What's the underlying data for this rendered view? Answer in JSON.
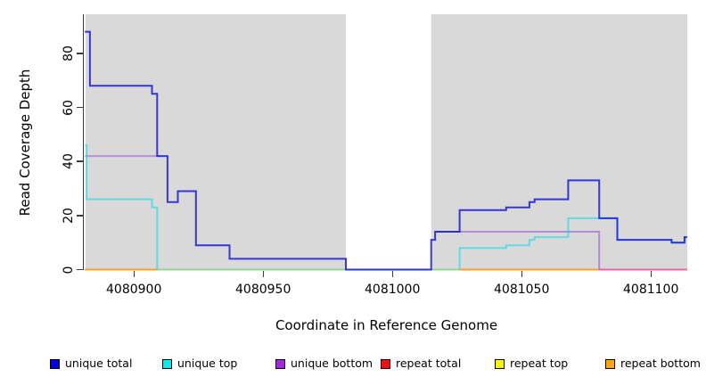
{
  "axes": {
    "y": {
      "label": "Read Coverage Depth",
      "ticks": [
        0,
        20,
        40,
        60,
        80
      ]
    },
    "x": {
      "label": "Coordinate in Reference Genome",
      "ticks": [
        4080900,
        4080950,
        4081000,
        4081050,
        4081100
      ]
    }
  },
  "legend": {
    "items": [
      {
        "label": "unique total",
        "color": "#0000ee"
      },
      {
        "label": "unique top",
        "color": "#00eeee"
      },
      {
        "label": "unique bottom",
        "color": "#a02ad6"
      },
      {
        "label": "repeat total",
        "color": "#ee1111"
      },
      {
        "label": "repeat top",
        "color": "#f8f800"
      },
      {
        "label": "repeat bottom",
        "color": "#ffa510"
      }
    ]
  },
  "chart_data": {
    "type": "line",
    "subtype": "step-coverage",
    "title": "",
    "xlabel": "Coordinate in Reference Genome",
    "ylabel": "Read Coverage Depth",
    "xlim": [
      4080881,
      4081114
    ],
    "ylim": [
      0,
      92
    ],
    "grid": false,
    "plot_background": "#d9d9d9",
    "masked_region": {
      "x_start": 4080982,
      "x_end": 4081015,
      "color": "#ffffff"
    },
    "series": [
      {
        "name": "unique total",
        "points": [
          [
            4080881,
            88
          ],
          [
            4080883,
            68
          ],
          [
            4080907,
            65
          ],
          [
            4080909,
            42
          ],
          [
            4080913,
            25
          ],
          [
            4080917,
            29
          ],
          [
            4080924,
            9
          ],
          [
            4080937,
            4
          ],
          [
            4080982,
            0
          ],
          [
            4081015,
            11
          ],
          [
            4081016.5,
            14
          ],
          [
            4081026,
            22
          ],
          [
            4081044,
            23
          ],
          [
            4081053,
            25
          ],
          [
            4081055,
            26
          ],
          [
            4081068,
            33
          ],
          [
            4081080,
            19
          ],
          [
            4081087,
            11
          ],
          [
            4081108,
            10
          ],
          [
            4081113,
            12
          ],
          [
            4081114,
            12
          ]
        ]
      },
      {
        "name": "unique top",
        "points": [
          [
            4080881,
            46
          ],
          [
            4080881.7,
            26
          ],
          [
            4080907,
            23
          ],
          [
            4080909,
            0
          ],
          [
            4081026,
            8
          ],
          [
            4081044,
            9
          ],
          [
            4081053,
            11
          ],
          [
            4081055,
            12
          ],
          [
            4081068,
            19
          ],
          [
            4081087,
            11
          ],
          [
            4081108,
            10
          ],
          [
            4081113,
            12
          ],
          [
            4081114,
            12
          ]
        ]
      },
      {
        "name": "unique bottom",
        "points": [
          [
            4080881,
            42
          ],
          [
            4080910,
            25
          ],
          [
            4080917,
            29
          ],
          [
            4080924,
            9
          ],
          [
            4080937,
            4
          ],
          [
            4080982,
            0
          ],
          [
            4081015,
            11
          ],
          [
            4081016.5,
            14
          ],
          [
            4081080,
            0
          ],
          [
            4081114,
            0
          ]
        ]
      },
      {
        "name": "repeat total",
        "points": [
          [
            4080881,
            0
          ],
          [
            4081114,
            0
          ]
        ]
      },
      {
        "name": "repeat top",
        "points": [
          [
            4080881,
            0
          ],
          [
            4081114,
            0
          ]
        ]
      },
      {
        "name": "repeat bottom",
        "points": [
          [
            4080881,
            0
          ],
          [
            4081114,
            0
          ]
        ]
      }
    ],
    "render_lines": [
      {
        "name": "zero-line-repeat-bottom-left",
        "color": "#ff9d2e",
        "points": [
          [
            4080881,
            0
          ],
          [
            4080909,
            0
          ]
        ]
      },
      {
        "name": "zero-line-blend-green",
        "color": "#95d595",
        "points": [
          [
            4080909,
            0
          ],
          [
            4081026,
            0
          ]
        ]
      },
      {
        "name": "zero-line-repeat-bottom-mid",
        "color": "#ff9d2e",
        "points": [
          [
            4081026,
            0
          ],
          [
            4081080,
            0
          ]
        ]
      },
      {
        "name": "zero-line-blend-pink",
        "color": "#ea679d",
        "points": [
          [
            4081080,
            0
          ],
          [
            4081114,
            0
          ]
        ]
      },
      {
        "name": "unique-bottom-left",
        "color": "rgba(140,60,210,0.45)",
        "points": [
          [
            4080881,
            42
          ],
          [
            4080910,
            42
          ]
        ]
      },
      {
        "name": "unique-bottom-right",
        "color": "rgba(140,60,210,0.5)",
        "points": [
          [
            4081016.5,
            14
          ],
          [
            4081080,
            14
          ],
          [
            4081080,
            0
          ]
        ]
      },
      {
        "name": "unique-top-left",
        "color": "rgba(0,220,230,0.55)",
        "points": [
          [
            4080881,
            46
          ],
          [
            4080881.7,
            26
          ],
          [
            4080907,
            23
          ],
          [
            4080909,
            0
          ]
        ]
      },
      {
        "name": "unique-top-right",
        "color": "rgba(0,220,230,0.55)",
        "points": [
          [
            4081026,
            0
          ],
          [
            4081026,
            8
          ],
          [
            4081044,
            9
          ],
          [
            4081053,
            11
          ],
          [
            4081055,
            12
          ],
          [
            4081068,
            19
          ],
          [
            4081087,
            11
          ],
          [
            4081108,
            10
          ],
          [
            4081113,
            12
          ],
          [
            4081114,
            12
          ]
        ]
      },
      {
        "name": "unique-total",
        "color": "rgba(25,25,220,0.85)",
        "points": [
          [
            4080881,
            88
          ],
          [
            4080883,
            68
          ],
          [
            4080907,
            65
          ],
          [
            4080909,
            42
          ],
          [
            4080913,
            25
          ],
          [
            4080917,
            29
          ],
          [
            4080924,
            9
          ],
          [
            4080937,
            4
          ],
          [
            4080982,
            0
          ],
          [
            4081015,
            11
          ],
          [
            4081016.5,
            14
          ],
          [
            4081026,
            22
          ],
          [
            4081044,
            23
          ],
          [
            4081053,
            25
          ],
          [
            4081055,
            26
          ],
          [
            4081068,
            33
          ],
          [
            4081080,
            19
          ],
          [
            4081087,
            11
          ],
          [
            4081108,
            10
          ],
          [
            4081113,
            12
          ],
          [
            4081114,
            12
          ]
        ]
      }
    ]
  }
}
